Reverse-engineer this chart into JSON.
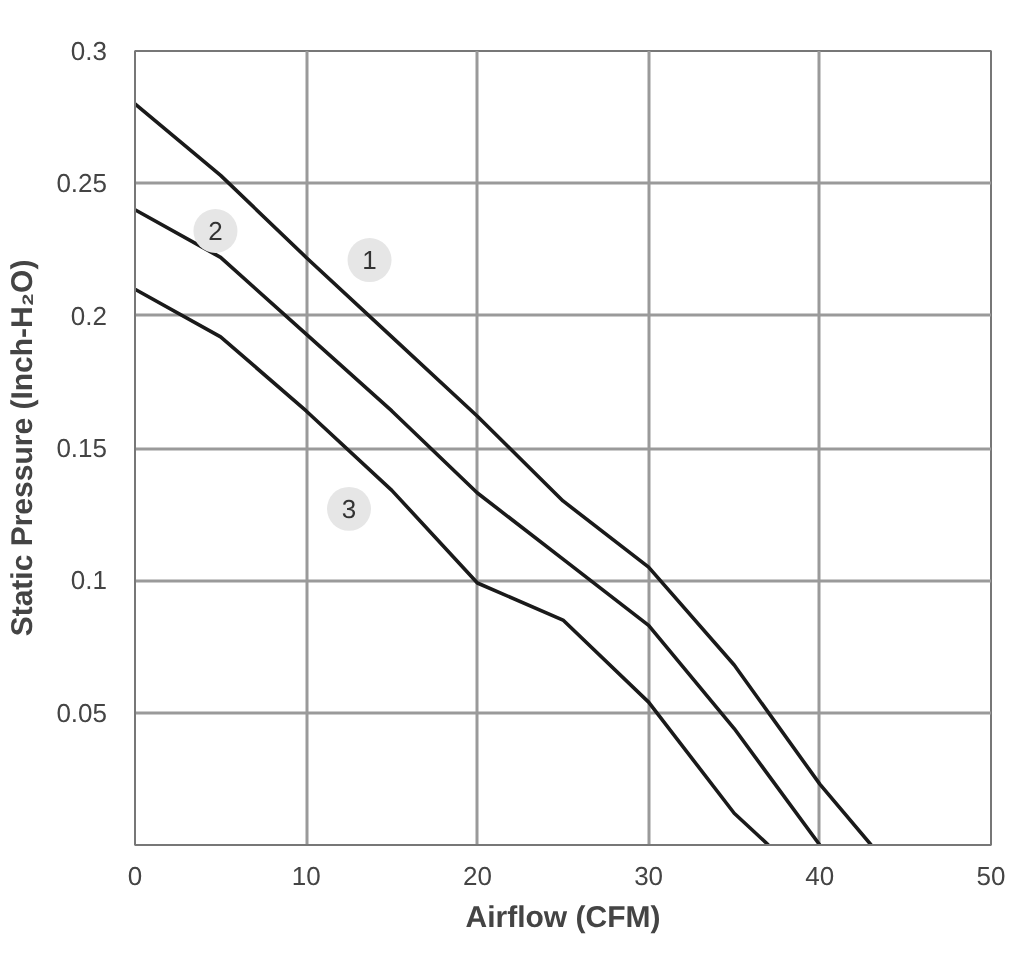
{
  "chart_data": {
    "type": "line",
    "xlabel": "Airflow (CFM)",
    "ylabel": "Static Pressure (Inch-H₂O)",
    "xlim": [
      0,
      50
    ],
    "ylim": [
      0,
      0.3
    ],
    "xticks": [
      0,
      10,
      20,
      30,
      40,
      50
    ],
    "yticks": [
      0.05,
      0.1,
      0.15,
      0.2,
      0.25,
      0.3
    ],
    "grid": true,
    "series": [
      {
        "color": "#1a1a1a",
        "x": [
          0,
          5,
          10,
          15,
          20,
          25,
          30,
          35,
          40,
          43
        ],
        "values": [
          0.28,
          0.253,
          0.222,
          0.192,
          0.162,
          0.13,
          0.105,
          0.068,
          0.023,
          0
        ]
      },
      {
        "color": "#1a1a1a",
        "x": [
          0,
          5,
          10,
          15,
          20,
          25,
          30,
          35,
          40
        ],
        "values": [
          0.24,
          0.222,
          0.193,
          0.164,
          0.133,
          0.108,
          0.083,
          0.044,
          0
        ]
      },
      {
        "color": "#1a1a1a",
        "x": [
          0,
          5,
          10,
          15,
          20,
          25,
          30,
          35,
          37
        ],
        "values": [
          0.21,
          0.192,
          0.164,
          0.134,
          0.099,
          0.085,
          0.054,
          0.012,
          0
        ]
      }
    ],
    "annotations": [
      {
        "text": "1",
        "x": 13.7,
        "y": 0.221
      },
      {
        "text": "2",
        "x": 4.7,
        "y": 0.232
      },
      {
        "text": "3",
        "x": 12.5,
        "y": 0.127
      }
    ]
  }
}
